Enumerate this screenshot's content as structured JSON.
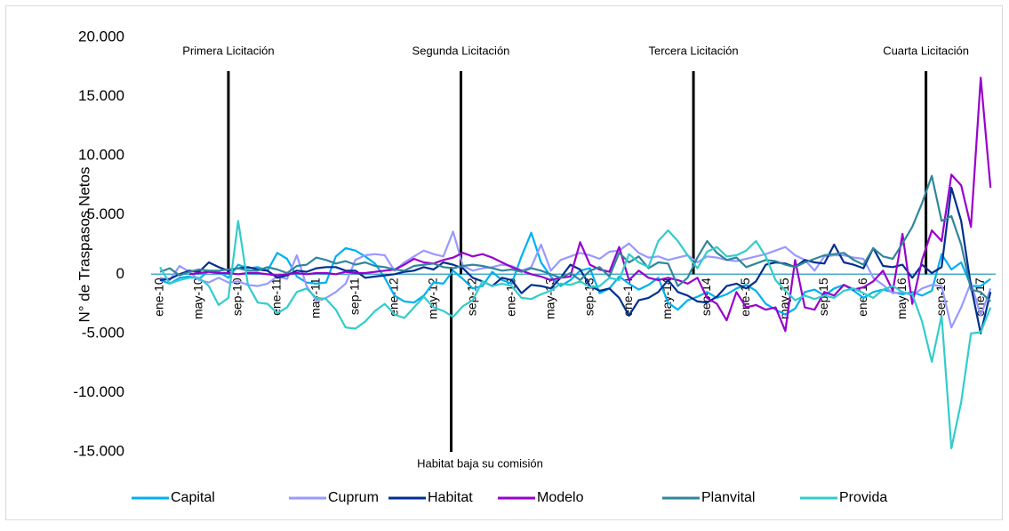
{
  "chart_data": {
    "type": "line",
    "y_label": "N° de Traspasos Netos",
    "categories": [
      "ene-10",
      null,
      null,
      null,
      "may-10",
      null,
      null,
      null,
      "sep-10",
      null,
      null,
      null,
      "ene-11",
      null,
      null,
      null,
      "may-11",
      null,
      null,
      null,
      "sep-11",
      null,
      null,
      null,
      "ene-12",
      null,
      null,
      null,
      "may-12",
      null,
      null,
      null,
      "sep-12",
      null,
      null,
      null,
      "ene-13",
      null,
      null,
      null,
      "may-13",
      null,
      null,
      null,
      "sep-13",
      null,
      null,
      null,
      "ene-14",
      null,
      null,
      null,
      "may-14",
      null,
      null,
      null,
      "sep-14",
      null,
      null,
      null,
      "ene-15",
      null,
      null,
      null,
      "may-15",
      null,
      null,
      null,
      "sep-15",
      null,
      null,
      null,
      "ene-16",
      null,
      null,
      null,
      "may-16",
      null,
      null,
      null,
      "sep-16",
      null,
      null,
      null,
      "ene-17",
      null
    ],
    "ylim": [
      -15000,
      20000
    ],
    "yticks": [
      {
        "value": -15000,
        "label": "-15.000"
      },
      {
        "value": -10000,
        "label": "-10.000"
      },
      {
        "value": -5000,
        "label": "-5.000"
      },
      0,
      {
        "value": 5000,
        "label": "5.000"
      },
      {
        "value": 10000,
        "label": "10.000"
      },
      {
        "value": 15000,
        "label": "15.000"
      },
      {
        "value": 20000,
        "label": "20.000"
      }
    ],
    "grid": false,
    "legend": "bottom",
    "annotations": [
      "Primera Licitación",
      "Segunda Licitación",
      "Tercera Licitación",
      "Cuarta Licitación"
    ],
    "note": "Habitat baja su comisión",
    "series": [
      {
        "name": "Capital",
        "color": "#00b0f0",
        "values": [
          -500,
          -800,
          -300,
          -200,
          -400,
          300,
          200,
          -300,
          800,
          500,
          600,
          300,
          1800,
          1300,
          -200,
          -700,
          -800,
          -700,
          1500,
          2200,
          2000,
          1500,
          900,
          -300,
          -1800,
          -2300,
          -2400,
          -1800,
          -700,
          -800,
          300,
          -400,
          -1200,
          -1000,
          200,
          -500,
          -800,
          1500,
          3500,
          1000,
          -200,
          -1000,
          -500,
          300,
          500,
          -1600,
          -1200,
          -200,
          -800,
          -1300,
          -900,
          -300,
          -2400,
          -3000,
          -2200,
          -1900,
          -1500,
          -2000,
          -1700,
          -1200,
          -900,
          -1400,
          -2500,
          -3000,
          -3400,
          -2900,
          -1500,
          -1300,
          -1800,
          -1200,
          -900,
          -1400,
          -2000,
          -1500,
          -1300,
          -1500,
          -1700,
          -1500,
          -1800,
          -1400,
          1700,
          400,
          1000,
          -1000,
          -1000,
          -400
        ]
      },
      {
        "name": "Cuprum",
        "color": "#9999ff",
        "values": [
          -300,
          -500,
          700,
          200,
          -500,
          -700,
          -300,
          -700,
          -600,
          -900,
          -1000,
          -800,
          -200,
          -400,
          1600,
          -1000,
          -2200,
          -2000,
          -1500,
          -800,
          1200,
          1600,
          1700,
          1600,
          300,
          1000,
          1500,
          2000,
          1700,
          1500,
          3600,
          700,
          300,
          500,
          600,
          800,
          700,
          300,
          600,
          2500,
          300,
          1200,
          1500,
          1800,
          1600,
          1300,
          1900,
          2000,
          2600,
          1800,
          1400,
          1500,
          1200,
          1400,
          1600,
          1000,
          1500,
          1400,
          1200,
          1100,
          1300,
          1500,
          1700,
          2000,
          2300,
          1600,
          1200,
          300,
          1500,
          1600,
          1600,
          1400,
          1300,
          -300,
          -900,
          -1600,
          -1500,
          -1800,
          -1200,
          -900,
          -1000,
          -4500,
          -2800,
          -700,
          -3500,
          -1200
        ]
      },
      {
        "name": "Habitat",
        "color": "#002f8e",
        "values": [
          -500,
          -400,
          0,
          300,
          200,
          1000,
          600,
          300,
          500,
          600,
          400,
          300,
          -300,
          -100,
          300,
          200,
          500,
          600,
          600,
          300,
          300,
          -300,
          -200,
          -100,
          0,
          200,
          300,
          600,
          400,
          1000,
          800,
          500,
          -300,
          -600,
          -1000,
          -300,
          -500,
          -1600,
          -900,
          -1000,
          -1200,
          -300,
          800,
          400,
          -1000,
          -1400,
          -1200,
          -2000,
          -3500,
          -2200,
          -2000,
          -1500,
          -500,
          -1500,
          -1800,
          -2300,
          -2400,
          -1900,
          -1000,
          -800,
          -1200,
          -600,
          800,
          1000,
          900,
          600,
          1200,
          1000,
          900,
          2500,
          1000,
          800,
          500,
          2200,
          700,
          600,
          800,
          -300,
          800,
          100,
          600,
          7300,
          4500,
          -1000,
          -5000,
          -1500
        ]
      },
      {
        "name": "Modelo",
        "color": "#9900cc",
        "values": [
          null,
          null,
          null,
          0,
          100,
          200,
          100,
          100,
          0,
          100,
          100,
          0,
          -100,
          0,
          100,
          0,
          100,
          100,
          0,
          200,
          100,
          100,
          200,
          300,
          400,
          800,
          1300,
          1000,
          900,
          1200,
          1400,
          1800,
          1500,
          1700,
          1400,
          1000,
          600,
          300,
          0,
          -200,
          -500,
          -300,
          -200,
          2700,
          800,
          400,
          200,
          2300,
          -500,
          300,
          -300,
          -500,
          -300,
          -500,
          -800,
          -300,
          -2000,
          -2500,
          -3900,
          -1500,
          -2800,
          -2600,
          -3000,
          -2800,
          -4800,
          1200,
          -2800,
          -3000,
          -1500,
          -1800,
          -900,
          -1300,
          -1100,
          -600,
          300,
          -1400,
          3400,
          -2500,
          1200,
          3700,
          2800,
          8400,
          7500,
          4000,
          16600,
          7300
        ]
      },
      {
        "name": "Planvital",
        "color": "#31869b",
        "values": [
          200,
          500,
          -100,
          200,
          400,
          300,
          300,
          400,
          500,
          300,
          300,
          600,
          400,
          100,
          700,
          800,
          1400,
          1200,
          900,
          1100,
          800,
          1000,
          700,
          600,
          400,
          300,
          700,
          800,
          900,
          600,
          500,
          700,
          800,
          700,
          500,
          300,
          400,
          200,
          500,
          300,
          0,
          -300,
          100,
          -500,
          300,
          600,
          -200,
          1800,
          1000,
          1500,
          500,
          1000,
          900,
          -1000,
          -300,
          1400,
          2800,
          1800,
          1200,
          1400,
          600,
          900,
          1200,
          1100,
          800,
          600,
          1000,
          1300,
          1600,
          1700,
          1800,
          1200,
          800,
          2200,
          1500,
          1300,
          2600,
          4000,
          6000,
          8300,
          4500,
          4900,
          2500,
          -1300,
          -1500,
          -2300
        ]
      },
      {
        "name": "Provida",
        "color": "#33cccc",
        "values": [
          600,
          -800,
          -500,
          -300,
          -300,
          -1000,
          -2600,
          -2000,
          4500,
          -900,
          -2400,
          -2500,
          -3300,
          -2800,
          -1500,
          -1200,
          -2000,
          -2100,
          -3000,
          -4500,
          -4600,
          -4000,
          -3100,
          -2500,
          -3400,
          -3700,
          -2800,
          -1900,
          -2800,
          -3100,
          -3600,
          -2700,
          -2200,
          -600,
          -1000,
          -800,
          -1000,
          -2000,
          -2100,
          -1700,
          -1400,
          -800,
          -900,
          -600,
          -1100,
          -1000,
          -300,
          -500,
          1700,
          1000,
          600,
          2800,
          3700,
          2800,
          1600,
          500,
          1900,
          2300,
          1500,
          1600,
          2000,
          2800,
          1500,
          -500,
          -1400,
          -2200,
          -1800,
          -2100,
          -1800,
          -2000,
          -1400,
          -1200,
          -1600,
          -2000,
          -1300,
          -1000,
          -1500,
          -1700,
          -4000,
          -7400,
          -3500,
          -14700,
          -10800,
          -5000,
          -4900,
          -2800
        ]
      }
    ]
  }
}
